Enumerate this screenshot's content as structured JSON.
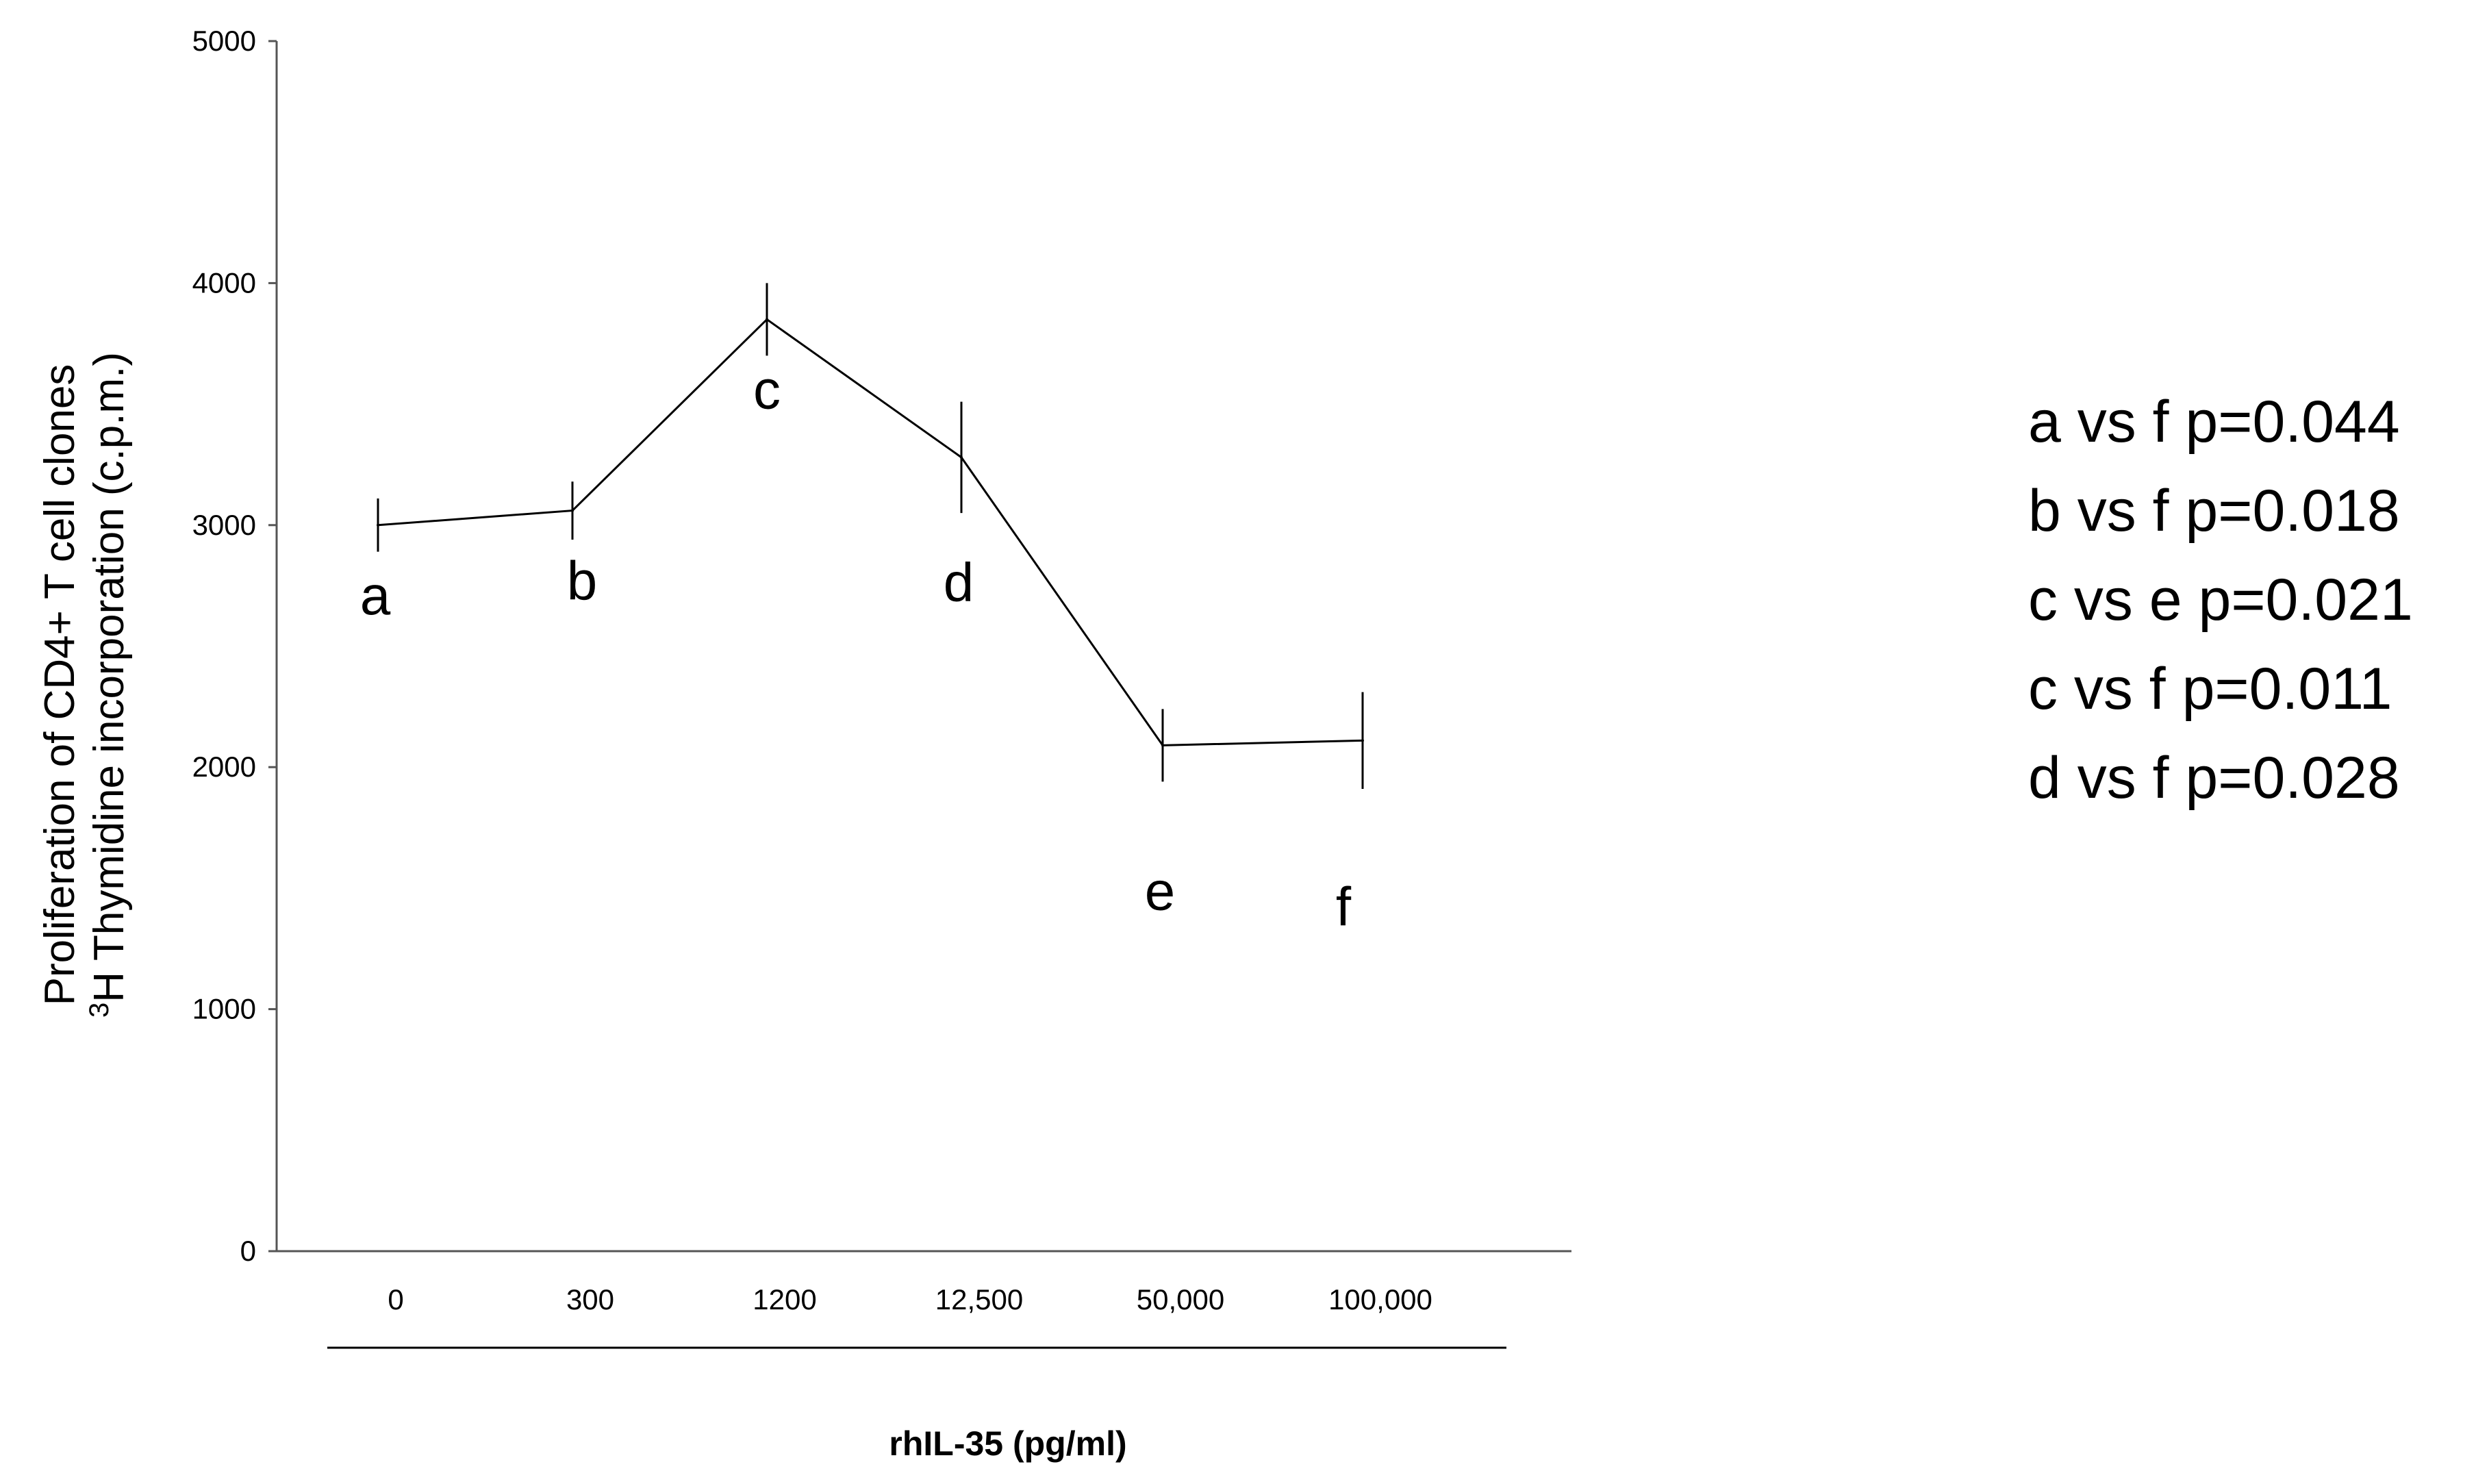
{
  "chart_data": {
    "type": "line",
    "categories": [
      "0",
      "300",
      "1200",
      "12,500",
      "50,000",
      "100,000"
    ],
    "series": [
      {
        "values": [
          3000,
          3060,
          3850,
          3280,
          2090,
          2110
        ],
        "errors": [
          110,
          120,
          150,
          230,
          150,
          200
        ],
        "point_labels": [
          "a",
          "b",
          "c",
          "d",
          "e",
          "f"
        ]
      }
    ],
    "ylim": [
      0,
      5000
    ],
    "yticks": [
      "0",
      "1000",
      "2000",
      "3000",
      "4000",
      "5000"
    ],
    "ylabel_lines": [
      "Proliferation of CD4+ T cell clones",
      "Thymidine incorporation (c.p.m.)"
    ],
    "ylabel_superscript": "3",
    "ylabel_superscript_base": "H",
    "xlabel": "rhIL-35 (pg/ml)",
    "grid": false,
    "color": "#000000"
  },
  "annotations": [
    "a vs f p=0.044",
    "b vs f p=0.018",
    "c vs e p=0.021",
    "c vs f p=0.011",
    "d vs f p=0.028"
  ]
}
